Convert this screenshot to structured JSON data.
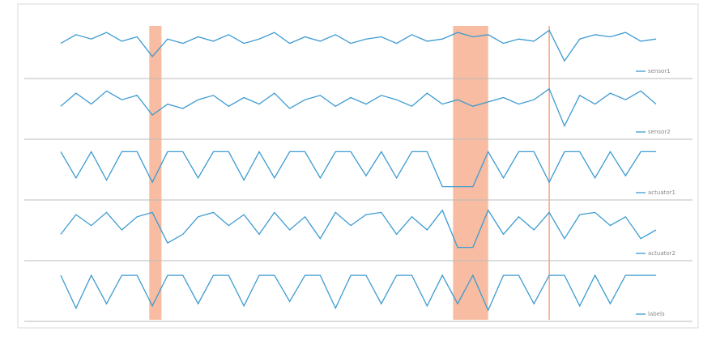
{
  "chart_data": {
    "type": "line",
    "x": [
      0,
      1,
      2,
      3,
      4,
      5,
      6,
      7,
      8,
      9,
      10,
      11,
      12,
      13,
      14,
      15,
      16,
      17,
      18,
      19,
      20,
      21,
      22,
      23,
      24,
      25,
      26,
      27,
      28,
      29,
      30,
      31,
      32,
      33,
      34,
      35,
      36,
      37,
      38,
      39
    ],
    "xlim": [
      0,
      39
    ],
    "ylim": [
      0,
      1
    ],
    "color": "#3d9bd1",
    "highlight_color": "#f4a582",
    "highlights": [
      {
        "start": 5.8,
        "end": 6.6
      },
      {
        "start": 25.7,
        "end": 28.0
      }
    ],
    "markers": [
      32
    ],
    "series": [
      {
        "name": "sensor1",
        "values": [
          0.6,
          0.8,
          0.7,
          0.85,
          0.65,
          0.75,
          0.3,
          0.7,
          0.6,
          0.75,
          0.65,
          0.8,
          0.6,
          0.7,
          0.85,
          0.6,
          0.75,
          0.65,
          0.8,
          0.6,
          0.7,
          0.75,
          0.6,
          0.8,
          0.65,
          0.7,
          0.85,
          0.75,
          0.8,
          0.6,
          0.7,
          0.65,
          0.9,
          0.2,
          0.7,
          0.8,
          0.75,
          0.85,
          0.65,
          0.7
        ]
      },
      {
        "name": "sensor2",
        "values": [
          0.55,
          0.85,
          0.6,
          0.9,
          0.7,
          0.8,
          0.35,
          0.6,
          0.5,
          0.7,
          0.8,
          0.55,
          0.75,
          0.6,
          0.85,
          0.5,
          0.7,
          0.8,
          0.55,
          0.75,
          0.6,
          0.8,
          0.7,
          0.55,
          0.85,
          0.6,
          0.7,
          0.55,
          0.65,
          0.75,
          0.6,
          0.7,
          0.95,
          0.1,
          0.8,
          0.6,
          0.85,
          0.7,
          0.9,
          0.6
        ]
      },
      {
        "name": "actuator1",
        "values": [
          0.9,
          0.3,
          0.9,
          0.25,
          0.9,
          0.9,
          0.2,
          0.9,
          0.9,
          0.3,
          0.9,
          0.9,
          0.25,
          0.9,
          0.3,
          0.9,
          0.9,
          0.3,
          0.9,
          0.9,
          0.35,
          0.9,
          0.3,
          0.9,
          0.9,
          0.1,
          0.1,
          0.1,
          0.9,
          0.3,
          0.9,
          0.9,
          0.2,
          0.9,
          0.9,
          0.3,
          0.9,
          0.35,
          0.9,
          0.9
        ]
      },
      {
        "name": "actuator2",
        "values": [
          0.4,
          0.85,
          0.6,
          0.9,
          0.5,
          0.8,
          0.9,
          0.2,
          0.4,
          0.8,
          0.9,
          0.6,
          0.85,
          0.4,
          0.9,
          0.5,
          0.8,
          0.3,
          0.9,
          0.6,
          0.85,
          0.9,
          0.4,
          0.8,
          0.5,
          0.95,
          0.1,
          0.1,
          0.95,
          0.4,
          0.8,
          0.5,
          0.9,
          0.3,
          0.85,
          0.9,
          0.6,
          0.8,
          0.3,
          0.5
        ]
      },
      {
        "name": "labels",
        "values": [
          0.85,
          0.1,
          0.85,
          0.2,
          0.85,
          0.85,
          0.15,
          0.85,
          0.85,
          0.2,
          0.85,
          0.85,
          0.15,
          0.85,
          0.85,
          0.25,
          0.85,
          0.85,
          0.1,
          0.85,
          0.85,
          0.2,
          0.85,
          0.85,
          0.15,
          0.85,
          0.2,
          0.85,
          0.05,
          0.85,
          0.85,
          0.2,
          0.85,
          0.85,
          0.15,
          0.85,
          0.2,
          0.85,
          0.85,
          0.85
        ]
      }
    ]
  }
}
